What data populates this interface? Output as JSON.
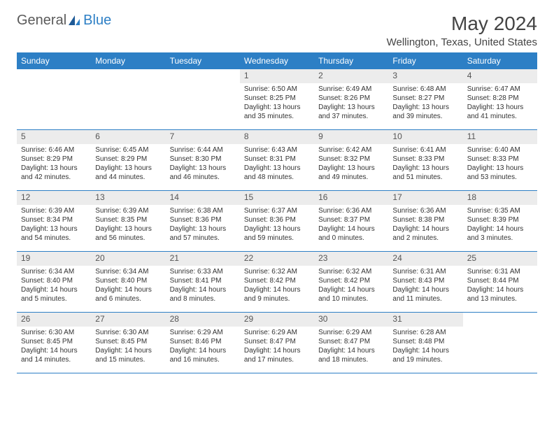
{
  "branding": {
    "word1": "General",
    "word2": "Blue",
    "word1_color": "#5a5a5a",
    "word2_color": "#2d7fc5",
    "sail_color": "#1e5a96"
  },
  "title": "May 2024",
  "location": "Wellington, Texas, United States",
  "colors": {
    "header_bg": "#2d7fc5",
    "header_text": "#ffffff",
    "daynum_bg": "#ececec",
    "daynum_text": "#555555",
    "text": "#333333",
    "divider": "#2d7fc5",
    "page_bg": "#ffffff"
  },
  "fonts": {
    "title_size": 28,
    "location_size": 15,
    "dow_size": 12,
    "daynum_size": 12,
    "body_size": 10
  },
  "daysOfWeek": [
    "Sunday",
    "Monday",
    "Tuesday",
    "Wednesday",
    "Thursday",
    "Friday",
    "Saturday"
  ],
  "weeks": [
    [
      {
        "n": "",
        "sunrise": "",
        "sunset": "",
        "daylight": ""
      },
      {
        "n": "",
        "sunrise": "",
        "sunset": "",
        "daylight": ""
      },
      {
        "n": "",
        "sunrise": "",
        "sunset": "",
        "daylight": ""
      },
      {
        "n": "1",
        "sunrise": "Sunrise: 6:50 AM",
        "sunset": "Sunset: 8:25 PM",
        "daylight": "Daylight: 13 hours and 35 minutes."
      },
      {
        "n": "2",
        "sunrise": "Sunrise: 6:49 AM",
        "sunset": "Sunset: 8:26 PM",
        "daylight": "Daylight: 13 hours and 37 minutes."
      },
      {
        "n": "3",
        "sunrise": "Sunrise: 6:48 AM",
        "sunset": "Sunset: 8:27 PM",
        "daylight": "Daylight: 13 hours and 39 minutes."
      },
      {
        "n": "4",
        "sunrise": "Sunrise: 6:47 AM",
        "sunset": "Sunset: 8:28 PM",
        "daylight": "Daylight: 13 hours and 41 minutes."
      }
    ],
    [
      {
        "n": "5",
        "sunrise": "Sunrise: 6:46 AM",
        "sunset": "Sunset: 8:29 PM",
        "daylight": "Daylight: 13 hours and 42 minutes."
      },
      {
        "n": "6",
        "sunrise": "Sunrise: 6:45 AM",
        "sunset": "Sunset: 8:29 PM",
        "daylight": "Daylight: 13 hours and 44 minutes."
      },
      {
        "n": "7",
        "sunrise": "Sunrise: 6:44 AM",
        "sunset": "Sunset: 8:30 PM",
        "daylight": "Daylight: 13 hours and 46 minutes."
      },
      {
        "n": "8",
        "sunrise": "Sunrise: 6:43 AM",
        "sunset": "Sunset: 8:31 PM",
        "daylight": "Daylight: 13 hours and 48 minutes."
      },
      {
        "n": "9",
        "sunrise": "Sunrise: 6:42 AM",
        "sunset": "Sunset: 8:32 PM",
        "daylight": "Daylight: 13 hours and 49 minutes."
      },
      {
        "n": "10",
        "sunrise": "Sunrise: 6:41 AM",
        "sunset": "Sunset: 8:33 PM",
        "daylight": "Daylight: 13 hours and 51 minutes."
      },
      {
        "n": "11",
        "sunrise": "Sunrise: 6:40 AM",
        "sunset": "Sunset: 8:33 PM",
        "daylight": "Daylight: 13 hours and 53 minutes."
      }
    ],
    [
      {
        "n": "12",
        "sunrise": "Sunrise: 6:39 AM",
        "sunset": "Sunset: 8:34 PM",
        "daylight": "Daylight: 13 hours and 54 minutes."
      },
      {
        "n": "13",
        "sunrise": "Sunrise: 6:39 AM",
        "sunset": "Sunset: 8:35 PM",
        "daylight": "Daylight: 13 hours and 56 minutes."
      },
      {
        "n": "14",
        "sunrise": "Sunrise: 6:38 AM",
        "sunset": "Sunset: 8:36 PM",
        "daylight": "Daylight: 13 hours and 57 minutes."
      },
      {
        "n": "15",
        "sunrise": "Sunrise: 6:37 AM",
        "sunset": "Sunset: 8:36 PM",
        "daylight": "Daylight: 13 hours and 59 minutes."
      },
      {
        "n": "16",
        "sunrise": "Sunrise: 6:36 AM",
        "sunset": "Sunset: 8:37 PM",
        "daylight": "Daylight: 14 hours and 0 minutes."
      },
      {
        "n": "17",
        "sunrise": "Sunrise: 6:36 AM",
        "sunset": "Sunset: 8:38 PM",
        "daylight": "Daylight: 14 hours and 2 minutes."
      },
      {
        "n": "18",
        "sunrise": "Sunrise: 6:35 AM",
        "sunset": "Sunset: 8:39 PM",
        "daylight": "Daylight: 14 hours and 3 minutes."
      }
    ],
    [
      {
        "n": "19",
        "sunrise": "Sunrise: 6:34 AM",
        "sunset": "Sunset: 8:40 PM",
        "daylight": "Daylight: 14 hours and 5 minutes."
      },
      {
        "n": "20",
        "sunrise": "Sunrise: 6:34 AM",
        "sunset": "Sunset: 8:40 PM",
        "daylight": "Daylight: 14 hours and 6 minutes."
      },
      {
        "n": "21",
        "sunrise": "Sunrise: 6:33 AM",
        "sunset": "Sunset: 8:41 PM",
        "daylight": "Daylight: 14 hours and 8 minutes."
      },
      {
        "n": "22",
        "sunrise": "Sunrise: 6:32 AM",
        "sunset": "Sunset: 8:42 PM",
        "daylight": "Daylight: 14 hours and 9 minutes."
      },
      {
        "n": "23",
        "sunrise": "Sunrise: 6:32 AM",
        "sunset": "Sunset: 8:42 PM",
        "daylight": "Daylight: 14 hours and 10 minutes."
      },
      {
        "n": "24",
        "sunrise": "Sunrise: 6:31 AM",
        "sunset": "Sunset: 8:43 PM",
        "daylight": "Daylight: 14 hours and 11 minutes."
      },
      {
        "n": "25",
        "sunrise": "Sunrise: 6:31 AM",
        "sunset": "Sunset: 8:44 PM",
        "daylight": "Daylight: 14 hours and 13 minutes."
      }
    ],
    [
      {
        "n": "26",
        "sunrise": "Sunrise: 6:30 AM",
        "sunset": "Sunset: 8:45 PM",
        "daylight": "Daylight: 14 hours and 14 minutes."
      },
      {
        "n": "27",
        "sunrise": "Sunrise: 6:30 AM",
        "sunset": "Sunset: 8:45 PM",
        "daylight": "Daylight: 14 hours and 15 minutes."
      },
      {
        "n": "28",
        "sunrise": "Sunrise: 6:29 AM",
        "sunset": "Sunset: 8:46 PM",
        "daylight": "Daylight: 14 hours and 16 minutes."
      },
      {
        "n": "29",
        "sunrise": "Sunrise: 6:29 AM",
        "sunset": "Sunset: 8:47 PM",
        "daylight": "Daylight: 14 hours and 17 minutes."
      },
      {
        "n": "30",
        "sunrise": "Sunrise: 6:29 AM",
        "sunset": "Sunset: 8:47 PM",
        "daylight": "Daylight: 14 hours and 18 minutes."
      },
      {
        "n": "31",
        "sunrise": "Sunrise: 6:28 AM",
        "sunset": "Sunset: 8:48 PM",
        "daylight": "Daylight: 14 hours and 19 minutes."
      },
      {
        "n": "",
        "sunrise": "",
        "sunset": "",
        "daylight": ""
      }
    ]
  ]
}
